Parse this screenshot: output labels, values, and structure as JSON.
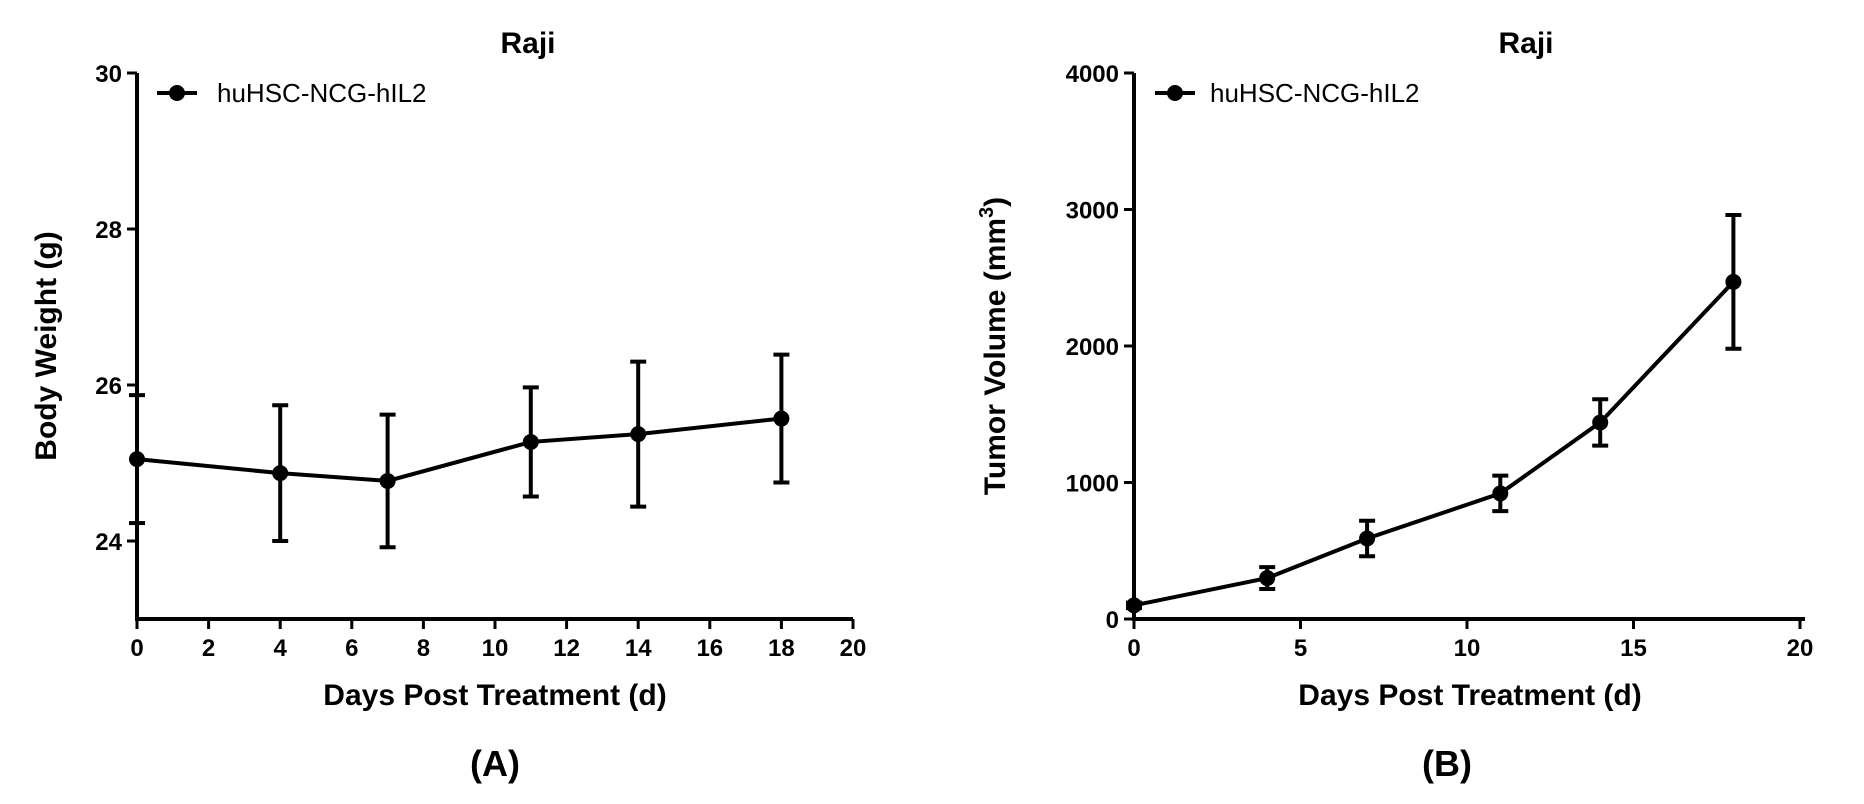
{
  "chart_data": [
    {
      "type": "line",
      "panel_label": "(A)",
      "title": "Raji",
      "xlabel": "Days Post Treatment (d)",
      "ylabel": "Body Weight (g)",
      "xlim": [
        0,
        20
      ],
      "ylim": [
        23,
        30
      ],
      "x_ticks": [
        "0",
        "2",
        "4",
        "6",
        "8",
        "10",
        "12",
        "14",
        "16",
        "18",
        "20"
      ],
      "y_ticks": [
        "24",
        "26",
        "28",
        "30"
      ],
      "grid": false,
      "legend_position": "top-left",
      "series": [
        {
          "name": "huHSC-NCG-hIL2",
          "color": "#000000",
          "x": [
            0,
            4,
            7,
            11,
            14,
            18
          ],
          "values": [
            25.05,
            24.87,
            24.77,
            25.27,
            25.37,
            25.57
          ],
          "error": [
            0.82,
            0.87,
            0.85,
            0.7,
            0.93,
            0.82
          ]
        }
      ]
    },
    {
      "type": "line",
      "panel_label": "(B)",
      "title": "Raji",
      "xlabel": "Days Post Treatment (d)",
      "ylabel": "Tumor Volume (mm",
      "ylabel_superscript": "3",
      "ylabel_suffix": ")",
      "xlim": [
        0,
        20
      ],
      "ylim": [
        0,
        4000
      ],
      "x_ticks": [
        "0",
        "5",
        "10",
        "15",
        "20"
      ],
      "y_ticks": [
        "0",
        "1000",
        "2000",
        "3000",
        "4000"
      ],
      "grid": false,
      "legend_position": "top-left",
      "series": [
        {
          "name": "huHSC-NCG-hIL2",
          "color": "#000000",
          "x": [
            0,
            4,
            7,
            11,
            14,
            18
          ],
          "values": [
            100,
            300,
            590,
            920,
            1440,
            2470
          ],
          "error": [
            20,
            80,
            130,
            130,
            170,
            490
          ]
        }
      ]
    }
  ]
}
